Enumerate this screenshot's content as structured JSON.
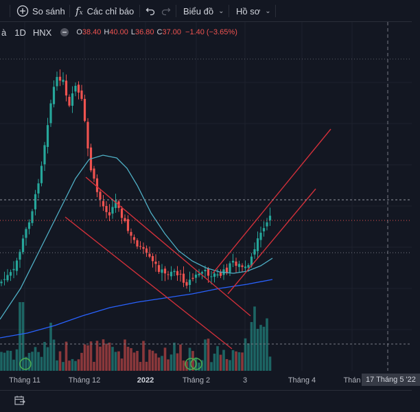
{
  "toolbar": {
    "compare_label": "So sánh",
    "indicators_label": "Các chỉ báo",
    "chart_type_label": "Biểu đồ",
    "profile_label": "Hồ sơ"
  },
  "legend": {
    "name_partial": "à",
    "interval": "1D",
    "exchange": "HNX",
    "open_label": "O",
    "open": "38.40",
    "high_label": "H",
    "high": "40.00",
    "low_label": "L",
    "low": "36.80",
    "close_label": "C",
    "close": "37.00",
    "change": "−1.40 (−3.65%)"
  },
  "time_axis": {
    "ticks": [
      "Tháng 11",
      "Tháng 12",
      "2022",
      "Tháng 2",
      "3",
      "Tháng 4",
      "Thán"
    ],
    "crosshair_label": "17 Tháng 5 '22"
  },
  "colors": {
    "background": "#131722",
    "up": "#26a69a",
    "down": "#ef5350",
    "ma_short": "#4fb0c6",
    "ma_long": "#2962ff",
    "trendline": "#d0303a"
  },
  "icons": {
    "compare": "plus-circle-icon",
    "indicators": "fx-icon",
    "undo": "undo-icon",
    "redo": "redo-icon",
    "hide_legend": "minus-circle-icon",
    "date_range": "calendar-range-icon"
  },
  "chart_data": {
    "type": "candlestick",
    "ohlc_last": {
      "open": 38.4,
      "high": 40.0,
      "low": 36.8,
      "close": 37.0
    },
    "x_ticks": [
      "Tháng 11",
      "Tháng 12",
      "2022",
      "Tháng 2",
      "3",
      "Tháng 4",
      "Thán"
    ],
    "grid": true
  }
}
